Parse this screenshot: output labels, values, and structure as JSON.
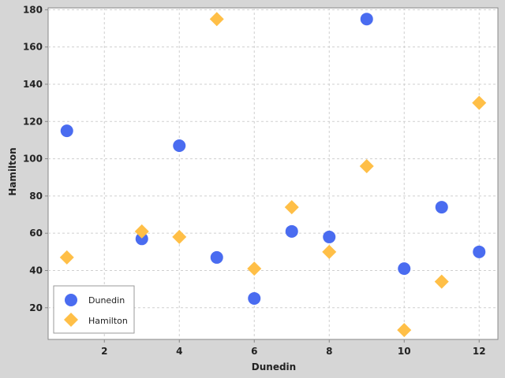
{
  "chart_data": {
    "type": "scatter",
    "title": "",
    "xlabel": "Dunedin",
    "ylabel": "Hamilton",
    "xlim": [
      0.5,
      12.5
    ],
    "ylim": [
      3,
      181
    ],
    "xticks": [
      2,
      4,
      6,
      8,
      10,
      12
    ],
    "yticks": [
      20,
      40,
      60,
      80,
      100,
      120,
      140,
      160,
      180
    ],
    "grid": true,
    "legend": "bottom-left",
    "series": [
      {
        "name": "Dunedin",
        "marker": "circle",
        "color": "#4a6cf0",
        "points": [
          [
            1,
            115
          ],
          [
            3,
            57
          ],
          [
            4,
            107
          ],
          [
            5,
            47
          ],
          [
            6,
            25
          ],
          [
            7,
            61
          ],
          [
            8,
            58
          ],
          [
            9,
            175
          ],
          [
            10,
            41
          ],
          [
            11,
            74
          ],
          [
            12,
            50
          ]
        ]
      },
      {
        "name": "Hamilton",
        "marker": "diamond",
        "color": "#ffbf47",
        "points": [
          [
            1,
            47
          ],
          [
            3,
            61
          ],
          [
            4,
            58
          ],
          [
            5,
            175
          ],
          [
            6,
            41
          ],
          [
            7,
            74
          ],
          [
            8,
            50
          ],
          [
            9,
            96
          ],
          [
            10,
            8
          ],
          [
            11,
            34
          ],
          [
            12,
            130
          ]
        ]
      }
    ]
  }
}
